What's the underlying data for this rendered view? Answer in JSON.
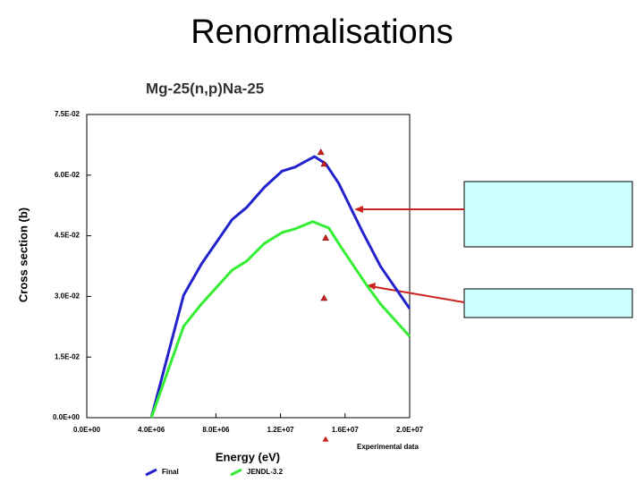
{
  "slide_title": "Renormalisations",
  "chart_data": {
    "type": "line",
    "title": "Mg-25(n,p)Na-25",
    "x_label": "Energy (eV)",
    "y_label": "Cross section (b)",
    "xlim": [
      0,
      20000000
    ],
    "ylim": [
      0,
      0.075
    ],
    "xticks": [
      {
        "value": 0,
        "label": "0.0E+00"
      },
      {
        "value": 4000000,
        "label": "4.0E+06"
      },
      {
        "value": 8000000,
        "label": "8.0E+06"
      },
      {
        "value": 12000000,
        "label": "1.2E+07"
      },
      {
        "value": 16000000,
        "label": "1.6E+07"
      },
      {
        "value": 20000000,
        "label": "2.0E+07"
      }
    ],
    "yticks": [
      {
        "value": 0,
        "label": "0.0E+00"
      },
      {
        "value": 0.015,
        "label": "1.5E-02"
      },
      {
        "value": 0.03,
        "label": "3.0E-02"
      },
      {
        "value": 0.045,
        "label": "4.5E-02"
      },
      {
        "value": 0.06,
        "label": "6.0E-02"
      },
      {
        "value": 0.075,
        "label": "7.5E-02"
      }
    ],
    "series": [
      {
        "name": "Final",
        "color": "#2222cc",
        "marker": "line",
        "x": [
          4000000,
          6000000,
          7100000,
          9000000,
          9900000,
          11000000,
          12100000,
          12900000,
          14100000,
          14800000,
          15600000,
          17100000,
          18200000,
          20000000
        ],
        "values": [
          0,
          0.0303,
          0.038,
          0.049,
          0.052,
          0.057,
          0.061,
          0.062,
          0.0646,
          0.0628,
          0.058,
          0.0458,
          0.0374,
          0.027
        ]
      },
      {
        "name": "JENDL-3.2",
        "color": "#33ee33",
        "marker": "line",
        "x": [
          4000000,
          6000000,
          7100000,
          9000000,
          9900000,
          11000000,
          12100000,
          12900000,
          14000000,
          15000000,
          15700000,
          17300000,
          18200000,
          20000000
        ],
        "values": [
          0,
          0.0226,
          0.0281,
          0.0365,
          0.0387,
          0.0431,
          0.0458,
          0.0467,
          0.0485,
          0.0469,
          0.0425,
          0.033,
          0.0281,
          0.0201
        ]
      },
      {
        "name": "Experimental data",
        "color": "#cc2222",
        "marker": "triangle",
        "x": [
          14500000,
          14700000,
          14800000,
          14700000
        ],
        "values": [
          0.0657,
          0.0628,
          0.0445,
          0.0296
        ]
      }
    ]
  }
}
